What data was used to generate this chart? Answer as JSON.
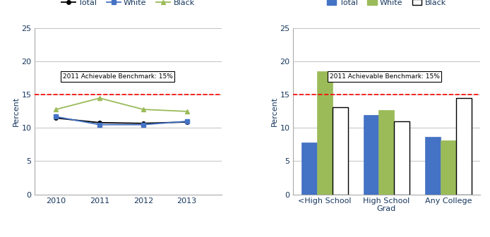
{
  "line_years": [
    2010,
    2011,
    2012,
    2013
  ],
  "line_total": [
    11.5,
    10.8,
    10.7,
    10.9
  ],
  "line_white": [
    11.7,
    10.5,
    10.5,
    11.0
  ],
  "line_black": [
    12.8,
    14.5,
    12.8,
    12.5
  ],
  "line_colors": {
    "Total": "#000000",
    "White": "#4472C4",
    "Black": "#9BBB59"
  },
  "line_ylim": [
    0,
    25
  ],
  "line_yticks": [
    0,
    5,
    10,
    15,
    20,
    25
  ],
  "benchmark": 15,
  "benchmark_label": "2011 Achievable Benchmark: 15%",
  "bar_categories": [
    "<High School",
    "High School\nGrad",
    "Any College"
  ],
  "bar_total": [
    7.8,
    12.0,
    8.7
  ],
  "bar_white": [
    18.5,
    12.7,
    8.1
  ],
  "bar_black": [
    13.1,
    11.0,
    14.5
  ],
  "bar_colors": {
    "Total": "#4472C4",
    "White": "#9BBB59",
    "Black": "#FFFFFF"
  },
  "bar_black_edge": "#000000",
  "bar_ylim": [
    0,
    25
  ],
  "bar_yticks": [
    0,
    5,
    10,
    15,
    20,
    25
  ],
  "ylabel": "Percent",
  "grid_color": "#AAAAAA",
  "text_color": "#17375E",
  "fig_width": 6.94,
  "fig_height": 3.36
}
